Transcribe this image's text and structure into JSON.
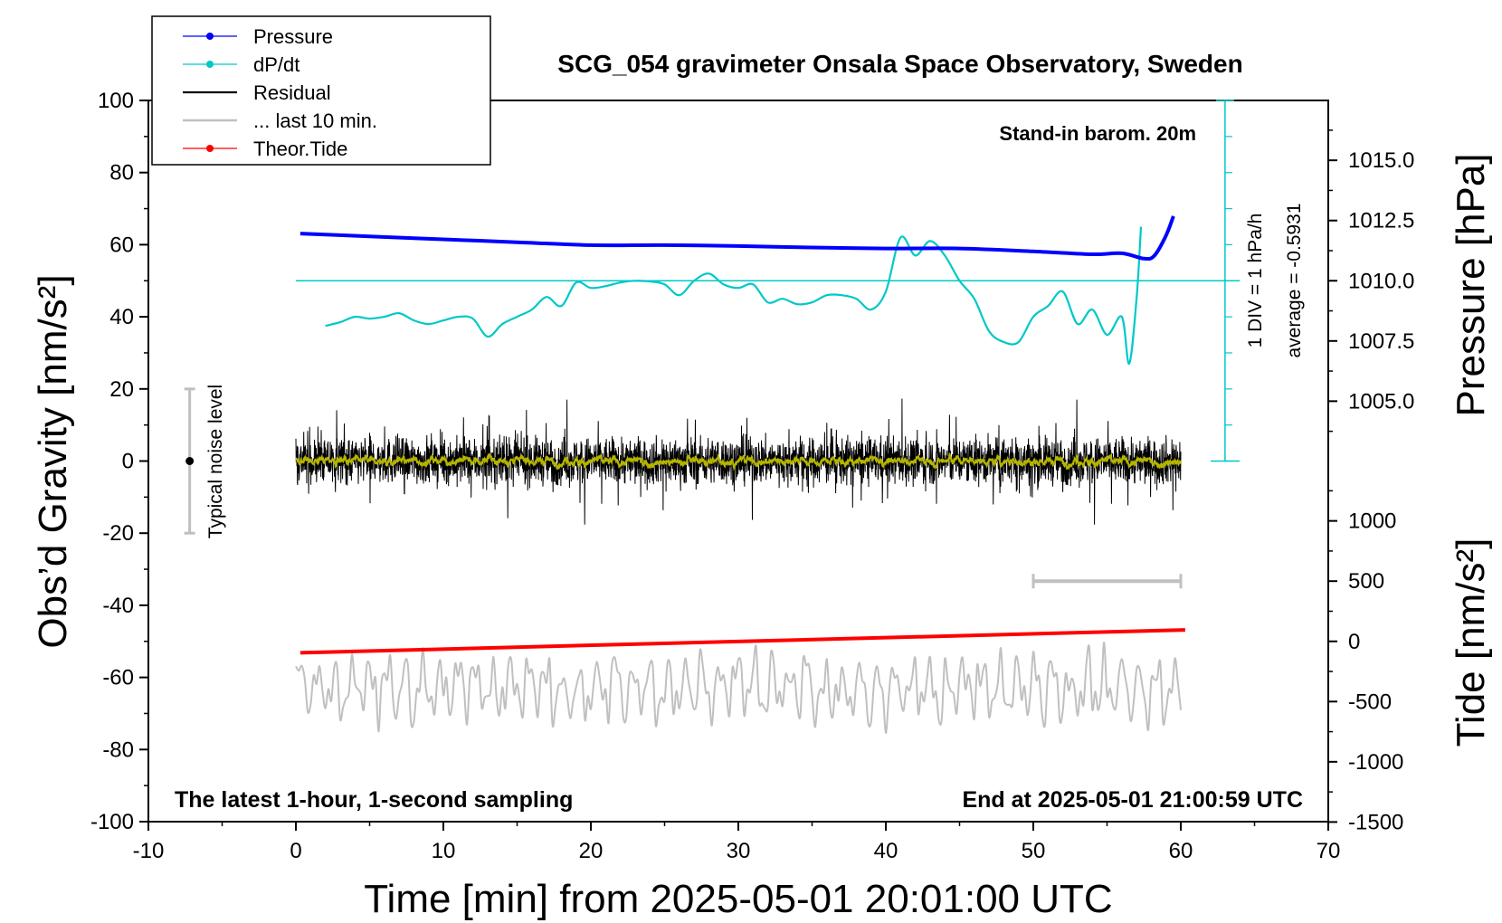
{
  "chart_data": {
    "type": "line",
    "title": "SCG_054 gravimeter Onsala Space Observatory, Sweden",
    "xlabel": "Time [min] from 2025-05-01 20:01:00 UTC",
    "ylabel_left": "Obs’d Gravity [nm/s²]",
    "ylabel_right_top": "Pressure [hPa]",
    "ylabel_right_bottom": "Tide [nm/s²]",
    "xlim": [
      -10,
      70
    ],
    "ylim_left": [
      -100,
      100
    ],
    "x_ticks": [
      "-10",
      "0",
      "10",
      "20",
      "30",
      "40",
      "50",
      "60",
      "70"
    ],
    "y_ticks_left": [
      "100",
      "80",
      "60",
      "40",
      "20",
      "0",
      "-20",
      "-40",
      "-60",
      "-80",
      "-100"
    ],
    "pressure_ticks": [
      "1015.0",
      "1012.5",
      "1010.0",
      "1007.5",
      "1005.0"
    ],
    "tide_ticks": [
      "1000",
      "500",
      "0",
      "-500",
      "-1000",
      "-1500"
    ],
    "annotations": {
      "top_right": "Stand-in barom. 20m",
      "bottom_left": "The latest 1-hour, 1-second sampling",
      "bottom_right": "End at 2025-05-01 21:00:59 UTC",
      "noise": "Typical noise level",
      "div_note": "1 DIV = 1 hPa/h",
      "average_note": "average = -0.5931"
    },
    "legend": {
      "placement": "top-left",
      "entries": [
        "Pressure",
        "dP/dt",
        "Residual",
        "... last 10 min.",
        "Theor.Tide"
      ]
    },
    "colors": {
      "pressure": "#0000ff",
      "dpdt": "#00c8c8",
      "residual": "#000000",
      "last10": "#c0c0c0",
      "tide": "#ff0000",
      "smooth": "#b4b400"
    },
    "series": [
      {
        "name": "Pressure",
        "axis": "pressure",
        "x": [
          0.3,
          5,
          10,
          15,
          20,
          25,
          30,
          35,
          40,
          45,
          50,
          54,
          56,
          57.5,
          58.2,
          59,
          59.5
        ],
        "values": [
          1011.96,
          1011.84,
          1011.72,
          1011.6,
          1011.48,
          1011.48,
          1011.44,
          1011.38,
          1011.34,
          1011.34,
          1011.22,
          1011.1,
          1011.14,
          1010.92,
          1011.04,
          1011.88,
          1012.68
        ]
      },
      {
        "name": "dP/dt",
        "axis": "left",
        "x": [
          2,
          3,
          4,
          5,
          6,
          7,
          8,
          9,
          10,
          11,
          12,
          13,
          14,
          15,
          16,
          17,
          18,
          19,
          20,
          21,
          22,
          23,
          24,
          25,
          26,
          27,
          28,
          29,
          30,
          31,
          32,
          33,
          34,
          35,
          36,
          37,
          38,
          39,
          40,
          41,
          42,
          43,
          44,
          45,
          46,
          47,
          48,
          49,
          50,
          51,
          52,
          53,
          54,
          55,
          56,
          56.5,
          57,
          57.3
        ],
        "values": [
          37.5,
          38.5,
          40,
          39.5,
          40,
          41,
          39,
          38,
          39,
          40,
          39.5,
          34.5,
          38,
          40,
          42,
          45.5,
          43,
          49.5,
          48,
          48.5,
          49.5,
          50,
          49.8,
          49,
          46,
          50,
          52,
          49,
          48,
          49,
          44,
          45,
          43.5,
          44,
          46,
          46,
          45,
          42,
          47,
          62,
          57,
          61,
          57,
          50,
          45,
          36,
          33,
          33,
          40,
          43,
          47,
          38,
          42,
          35,
          40,
          27,
          45,
          65
        ]
      },
      {
        "name": "Residual",
        "axis": "left",
        "xrange": [
          0,
          60
        ],
        "noise_amplitude": 10
      },
      {
        "name": "... last 10 min.",
        "axis": "left",
        "xrange": [
          0,
          60
        ],
        "center": -63,
        "noise_amplitude": 9
      },
      {
        "name": "Theor.Tide",
        "axis": "tide",
        "x": [
          0.3,
          60.3
        ],
        "values": [
          -95,
          95
        ]
      }
    ]
  }
}
